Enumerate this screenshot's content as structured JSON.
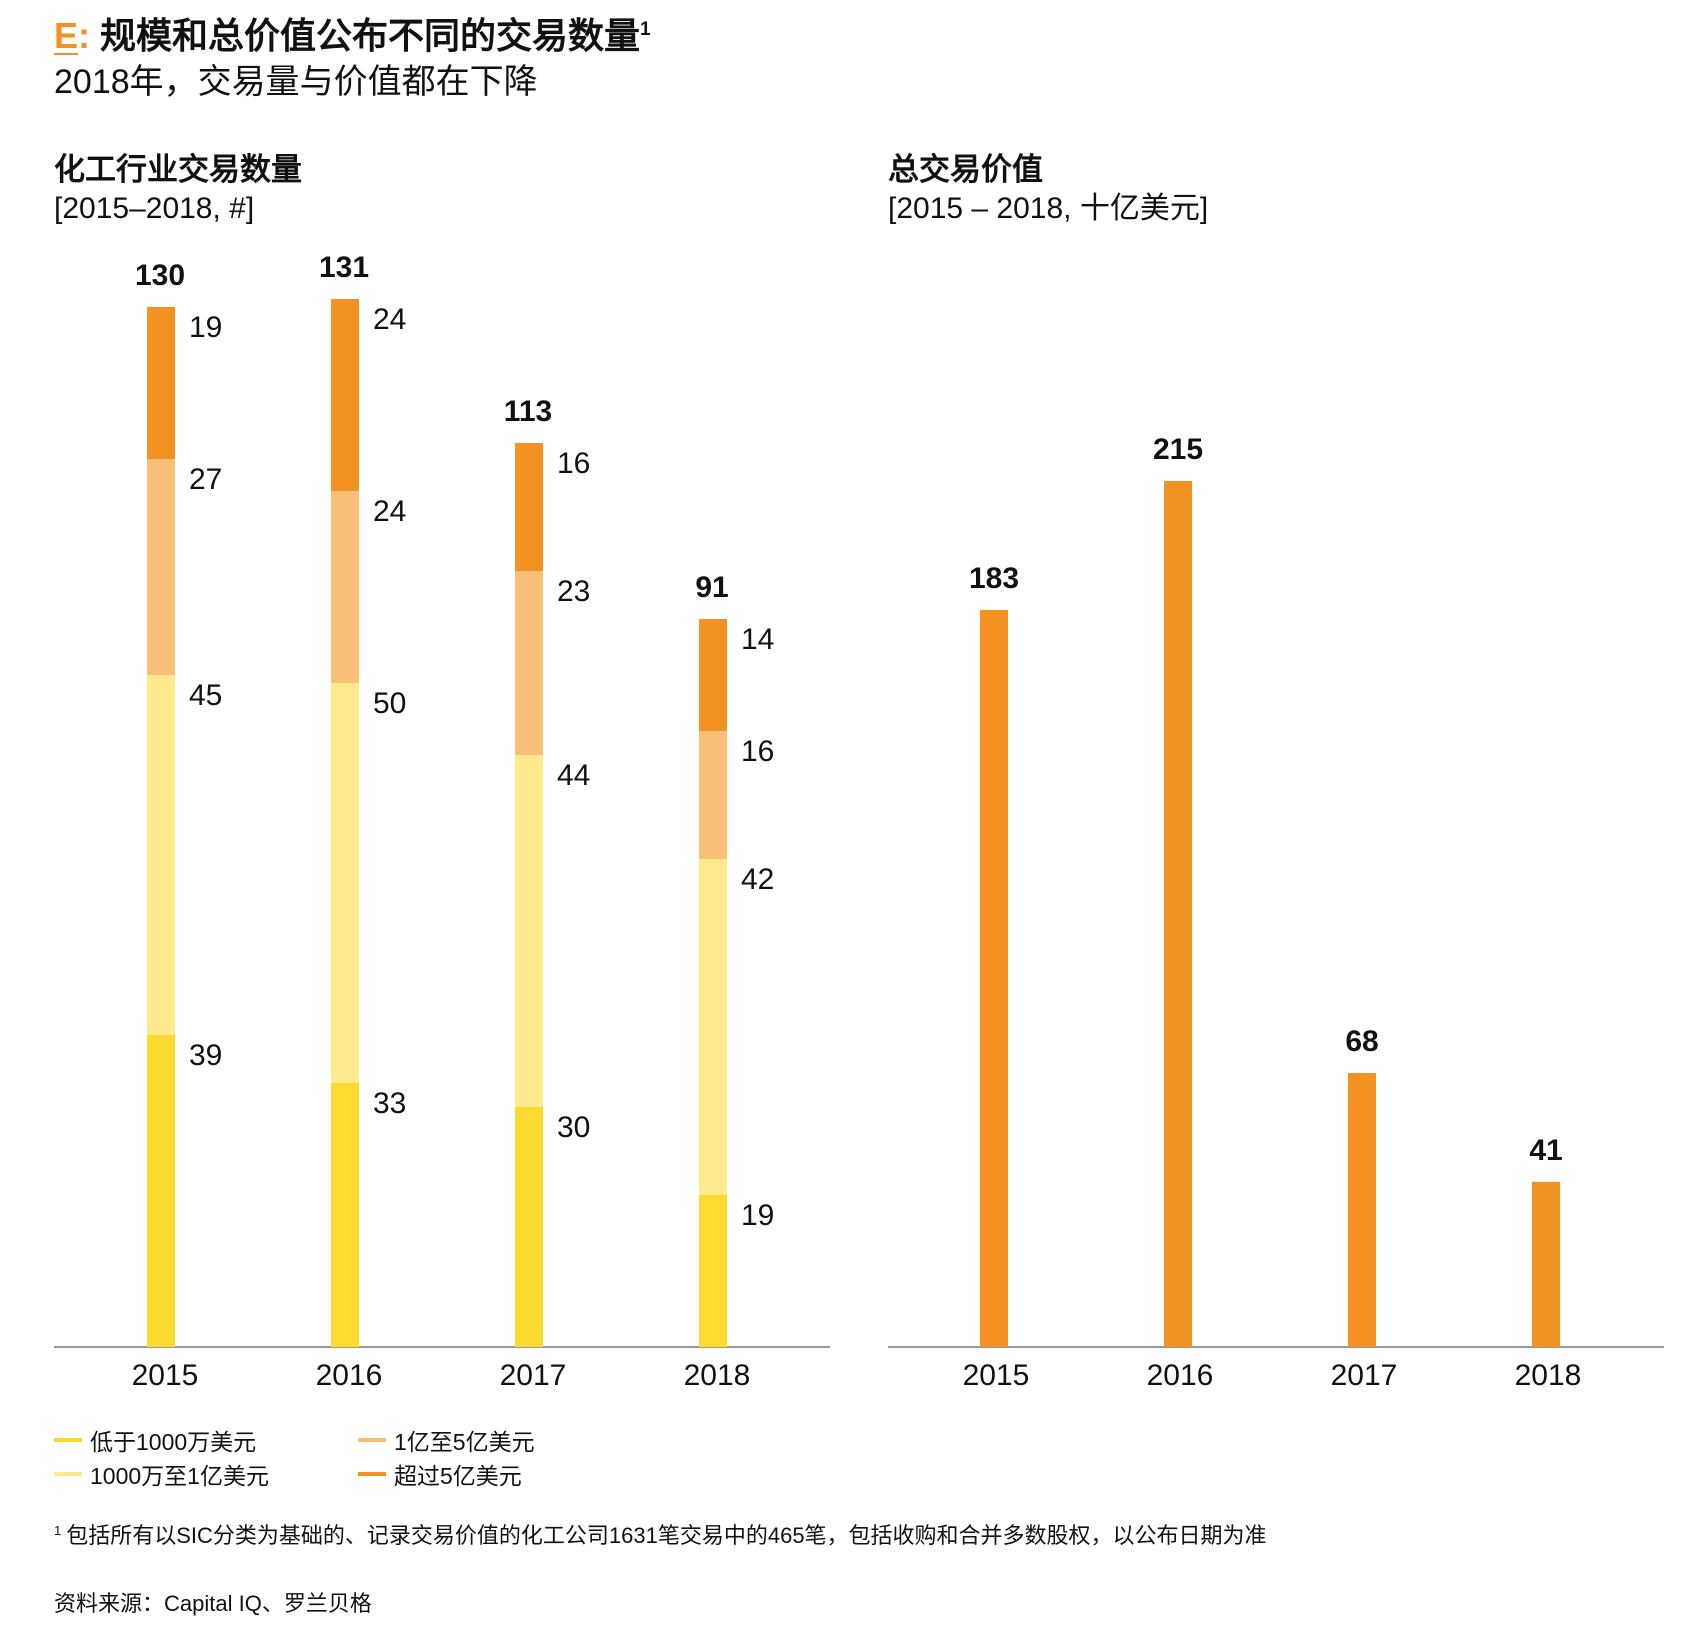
{
  "header": {
    "title_letter": "E",
    "title_colon": ":",
    "title_text": " 规模和总价值公布不同的交易数量",
    "title_sup": "1",
    "subtitle": "2018年，交易量与价值都在下降"
  },
  "colors": {
    "under_10m": "#FDDA2E",
    "10m_to_100m": "#FEE98C",
    "100m_to_500m": "#F9BE78",
    "over_500m": "#F39220",
    "axis": "#999999",
    "text": "#111111"
  },
  "chart_data": [
    {
      "type": "bar",
      "stacked": true,
      "title": "化工行业交易数量",
      "subtitle": "[2015–2018, #]",
      "categories": [
        "2015",
        "2016",
        "2017",
        "2018"
      ],
      "series": [
        {
          "name": "低于1000万美元",
          "values": [
            39,
            33,
            30,
            19
          ],
          "color": "#FDDA2E"
        },
        {
          "name": "1000万至1亿美元",
          "values": [
            45,
            50,
            44,
            42
          ],
          "color": "#FEE98C"
        },
        {
          "name": "1亿至5亿美元",
          "values": [
            27,
            24,
            23,
            16
          ],
          "color": "#F9BE78"
        },
        {
          "name": "超过5亿美元",
          "values": [
            19,
            24,
            16,
            14
          ],
          "color": "#F39220"
        }
      ],
      "totals": [
        130,
        131,
        113,
        91
      ],
      "ylim": [
        0,
        131
      ],
      "grid": false,
      "legend": "bottom-left"
    },
    {
      "type": "bar",
      "title": "总交易价值",
      "subtitle": "[2015 – 2018, 十亿美元]",
      "categories": [
        "2015",
        "2016",
        "2017",
        "2018"
      ],
      "values": [
        183,
        215,
        68,
        41
      ],
      "ylim": [
        0,
        215
      ],
      "color": "#F39220",
      "grid": false
    }
  ],
  "legend": {
    "items": [
      {
        "label": "低于1000万美元",
        "color": "#FDDA2E"
      },
      {
        "label": "1亿至5亿美元",
        "color": "#F9BE78"
      },
      {
        "label": "1000万至1亿美元",
        "color": "#FEE98C"
      },
      {
        "label": "超过5亿美元",
        "color": "#F39220"
      }
    ]
  },
  "footnote": {
    "marker": "1",
    "text": "包括所有以SIC分类为基础的、记录交易价值的化工公司1631笔交易中的465笔，包括收购和合并多数股权，以公布日期为准"
  },
  "source": "资料来源：Capital IQ、罗兰贝格"
}
